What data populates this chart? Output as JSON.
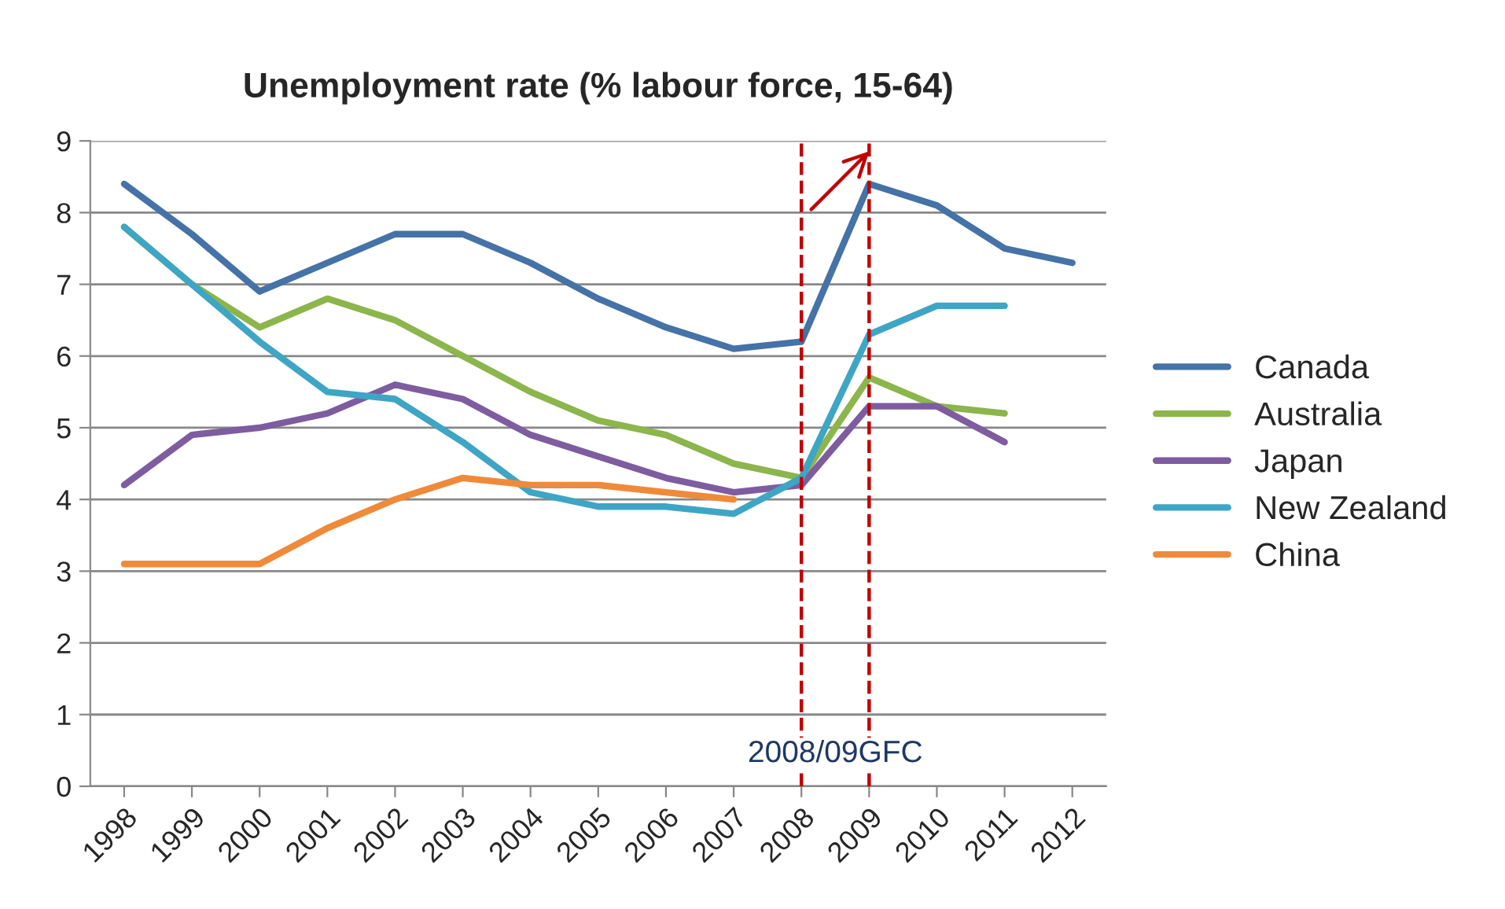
{
  "chart_data": {
    "type": "line",
    "title": "Unemployment rate (% labour force, 15-64)",
    "categories": [
      "1998",
      "1999",
      "2000",
      "2001",
      "2002",
      "2003",
      "2004",
      "2005",
      "2006",
      "2007",
      "2008",
      "2009",
      "2010",
      "2011",
      "2012"
    ],
    "series": [
      {
        "name": "Canada",
        "color": "#4572a7",
        "values": [
          8.4,
          7.7,
          6.9,
          7.3,
          7.7,
          7.7,
          7.3,
          6.8,
          6.4,
          6.1,
          6.2,
          8.4,
          8.1,
          7.5,
          7.3
        ]
      },
      {
        "name": "Australia",
        "color": "#8cb54b",
        "values": [
          7.8,
          7.0,
          6.4,
          6.8,
          6.5,
          6.0,
          5.5,
          5.1,
          4.9,
          4.5,
          4.3,
          5.7,
          5.3,
          5.2,
          null
        ]
      },
      {
        "name": "Japan",
        "color": "#7e5ca0",
        "values": [
          4.2,
          4.9,
          5.0,
          5.2,
          5.6,
          5.4,
          4.9,
          4.6,
          4.3,
          4.1,
          4.2,
          5.3,
          5.3,
          4.8,
          null
        ]
      },
      {
        "name": "New Zealand",
        "color": "#3fa5c4",
        "values": [
          7.8,
          7.0,
          6.2,
          5.5,
          5.4,
          4.8,
          4.1,
          3.9,
          3.9,
          3.8,
          4.3,
          6.3,
          6.7,
          6.7,
          null
        ]
      },
      {
        "name": "China",
        "color": "#ef8a3a",
        "values": [
          3.1,
          3.1,
          3.1,
          3.6,
          4.0,
          4.3,
          4.2,
          4.2,
          4.1,
          4.0,
          null,
          null,
          null,
          null,
          null
        ]
      }
    ],
    "ylim": [
      0,
      9
    ],
    "yticks": [
      0,
      1,
      2,
      3,
      4,
      5,
      6,
      7,
      8,
      9
    ],
    "grid": "y",
    "legend": "right",
    "marker": "none",
    "line_style": "solid",
    "ref_lines": [
      {
        "axis": "x",
        "value": "2008",
        "color": "#c00000",
        "line_style": "dashed"
      },
      {
        "axis": "x",
        "value": "2009",
        "color": "#c00000",
        "line_style": "dashed"
      }
    ],
    "annotations": [
      "2008/09GFC"
    ]
  }
}
